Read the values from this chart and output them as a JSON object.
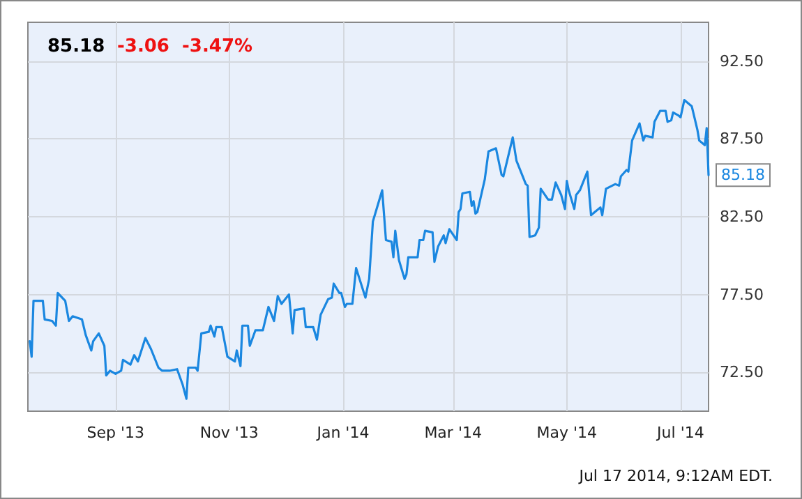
{
  "chart_data": {
    "type": "line",
    "title": "85.18",
    "subtitle": "-3.06  -3.47%",
    "annotations": [
      "Jul 17 2014, 9:12AM EDT.",
      {
        "text": "85.18",
        "x": "2014-07-16",
        "y": 85.18
      }
    ],
    "x": [
      "2013-07-17",
      "2013-07-18",
      "2013-07-19",
      "2013-07-24",
      "2013-07-25",
      "2013-07-29",
      "2013-07-31",
      "2013-08-01",
      "2013-08-05",
      "2013-08-07",
      "2013-08-09",
      "2013-08-14",
      "2013-08-16",
      "2013-08-19",
      "2013-08-20",
      "2013-08-23",
      "2013-08-26",
      "2013-08-27",
      "2013-08-29",
      "2013-09-01",
      "2013-09-04",
      "2013-09-05",
      "2013-09-09",
      "2013-09-11",
      "2013-09-13",
      "2013-09-17",
      "2013-09-20",
      "2013-09-24",
      "2013-09-26",
      "2013-09-30",
      "2013-10-04",
      "2013-10-07",
      "2013-10-09",
      "2013-10-10",
      "2013-10-14",
      "2013-10-15",
      "2013-10-17",
      "2013-10-21",
      "2013-10-22",
      "2013-10-24",
      "2013-10-25",
      "2013-10-28",
      "2013-10-31",
      "2013-11-04",
      "2013-11-05",
      "2013-11-07",
      "2013-11-08",
      "2013-11-11",
      "2013-11-12",
      "2013-11-15",
      "2013-11-19",
      "2013-11-22",
      "2013-11-25",
      "2013-11-27",
      "2013-11-29",
      "2013-12-03",
      "2013-12-05",
      "2013-12-06",
      "2013-12-11",
      "2013-12-12",
      "2013-12-16",
      "2013-12-18",
      "2013-12-20",
      "2013-12-24",
      "2013-12-26",
      "2013-12-27",
      "2013-12-30",
      "2013-12-31",
      "2014-01-02",
      "2014-01-03",
      "2014-01-06",
      "2014-01-08",
      "2014-01-13",
      "2014-01-15",
      "2014-01-17",
      "2014-01-22",
      "2014-01-24",
      "2014-01-27",
      "2014-01-28",
      "2014-01-29",
      "2014-01-31",
      "2014-02-03",
      "2014-02-04",
      "2014-02-05",
      "2014-02-07",
      "2014-02-10",
      "2014-02-11",
      "2014-02-13",
      "2014-02-14",
      "2014-02-18",
      "2014-02-19",
      "2014-02-21",
      "2014-02-24",
      "2014-02-25",
      "2014-02-27",
      "2014-03-03",
      "2014-03-04",
      "2014-03-05",
      "2014-03-06",
      "2014-03-10",
      "2014-03-11",
      "2014-03-12",
      "2014-03-13",
      "2014-03-14",
      "2014-03-18",
      "2014-03-20",
      "2014-03-24",
      "2014-03-27",
      "2014-03-28",
      "2014-04-02",
      "2014-04-04",
      "2014-04-09",
      "2014-04-10",
      "2014-04-11",
      "2014-04-14",
      "2014-04-16",
      "2014-04-17",
      "2014-04-21",
      "2014-04-23",
      "2014-04-25",
      "2014-04-28",
      "2014-04-30",
      "2014-05-01",
      "2014-05-02",
      "2014-05-05",
      "2014-05-06",
      "2014-05-08",
      "2014-05-12",
      "2014-05-14",
      "2014-05-16",
      "2014-05-19",
      "2014-05-20",
      "2014-05-22",
      "2014-05-27",
      "2014-05-29",
      "2014-05-30",
      "2014-06-02",
      "2014-06-03",
      "2014-06-05",
      "2014-06-09",
      "2014-06-11",
      "2014-06-12",
      "2014-06-16",
      "2014-06-17",
      "2014-06-20",
      "2014-06-23",
      "2014-06-24",
      "2014-06-26",
      "2014-06-27",
      "2014-06-30",
      "2014-07-01",
      "2014-07-03",
      "2014-07-07",
      "2014-07-08",
      "2014-07-10",
      "2014-07-11",
      "2014-07-14",
      "2014-07-15",
      "2014-07-16"
    ],
    "series": [
      {
        "color": "#1a87e0",
        "values": [
          74.5,
          73.5,
          77.1,
          77.1,
          75.9,
          75.8,
          75.5,
          77.6,
          77.1,
          75.8,
          76.1,
          75.9,
          74.9,
          73.9,
          74.5,
          75.0,
          74.2,
          72.3,
          72.6,
          72.4,
          72.6,
          73.3,
          73.0,
          73.6,
          73.2,
          74.7,
          74.0,
          72.8,
          72.6,
          72.6,
          72.7,
          71.7,
          70.8,
          72.8,
          72.8,
          72.6,
          75.0,
          75.1,
          75.5,
          74.8,
          75.4,
          75.4,
          73.5,
          73.2,
          73.9,
          72.9,
          75.5,
          75.5,
          74.2,
          75.2,
          75.2,
          76.7,
          75.8,
          77.4,
          76.9,
          77.5,
          75.0,
          76.5,
          76.6,
          75.4,
          75.4,
          74.6,
          76.2,
          77.2,
          77.3,
          78.2,
          77.6,
          77.6,
          76.7,
          76.9,
          76.9,
          79.2,
          77.3,
          78.5,
          82.2,
          84.2,
          81.0,
          80.9,
          79.9,
          81.6,
          79.7,
          78.5,
          78.8,
          79.9,
          79.9,
          79.9,
          81.0,
          81.0,
          81.6,
          81.5,
          79.6,
          80.6,
          81.3,
          80.8,
          81.7,
          81.0,
          82.8,
          83.0,
          84.0,
          84.1,
          83.2,
          83.5,
          82.7,
          82.8,
          84.9,
          86.7,
          86.9,
          85.2,
          85.1,
          87.6,
          86.1,
          84.6,
          84.5,
          81.2,
          81.3,
          81.8,
          84.3,
          83.6,
          83.6,
          84.7,
          83.9,
          83.0,
          84.8,
          84.2,
          83.0,
          83.9,
          84.2,
          85.4,
          82.6,
          82.8,
          83.1,
          82.6,
          84.3,
          84.6,
          84.5,
          85.1,
          85.5,
          85.4,
          87.4,
          88.5,
          87.4,
          87.7,
          87.6,
          88.6,
          89.3,
          89.3,
          88.6,
          88.7,
          89.2,
          89.0,
          88.9,
          90.0,
          89.6,
          89.1,
          88.1,
          87.4,
          87.1,
          88.2,
          85.18
        ]
      }
    ],
    "xlim": [
      "2013-07-16",
      "2014-07-16"
    ],
    "xticks": [
      {
        "value": "2013-09-01",
        "label": "Sep '13"
      },
      {
        "value": "2013-11-01",
        "label": "Nov '13"
      },
      {
        "value": "2014-01-01",
        "label": "Jan '14"
      },
      {
        "value": "2014-03-01",
        "label": "Mar '14"
      },
      {
        "value": "2014-05-01",
        "label": "May '14"
      },
      {
        "value": "2014-07-01",
        "label": "Jul '14"
      }
    ],
    "ylim": [
      70,
      95
    ],
    "yticks": [
      {
        "value": 72.5,
        "label": "72.50"
      },
      {
        "value": 77.5,
        "label": "77.50"
      },
      {
        "value": 82.5,
        "label": "82.50"
      },
      {
        "value": 87.5,
        "label": "87.50"
      },
      {
        "value": 92.5,
        "label": "92.50"
      }
    ],
    "grid": true,
    "marker": "none",
    "line_style": "solid"
  }
}
